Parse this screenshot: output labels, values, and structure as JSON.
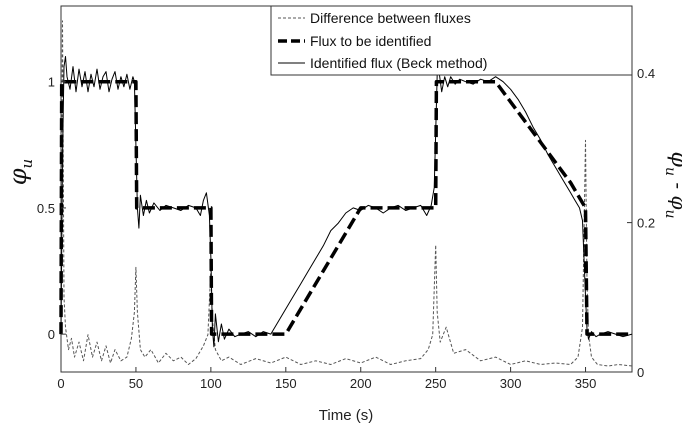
{
  "chart_data": {
    "type": "line",
    "xlabel": "Time (s)",
    "ylabel_left": "φ_u",
    "ylabel_right": "φ̂_u - φ_u",
    "x_ticks": [
      0,
      50,
      100,
      150,
      200,
      250,
      300,
      350
    ],
    "y_left_ticks": [
      0,
      0.5,
      1
    ],
    "y_right_ticks": [
      0,
      0.2,
      0.4
    ],
    "xlim": [
      0,
      381
    ],
    "ylim_left": [
      -0.15,
      1.3
    ],
    "ylim_right": [
      0,
      0.49
    ],
    "grid": false,
    "legend_position": "top-right",
    "series": [
      {
        "name": "Difference between fluxes",
        "axis": "right",
        "style": "dotted",
        "color": "#555555",
        "x": [
          0,
          1,
          2,
          3,
          5,
          7,
          9,
          12,
          15,
          18,
          21,
          24,
          27,
          30,
          33,
          36,
          40,
          44,
          47,
          49,
          50,
          51,
          53,
          56,
          60,
          65,
          70,
          75,
          80,
          85,
          90,
          95,
          98,
          100,
          101,
          103,
          107,
          112,
          120,
          130,
          140,
          150,
          160,
          170,
          180,
          190,
          200,
          210,
          220,
          230,
          240,
          245,
          248,
          250,
          251,
          253,
          257,
          262,
          270,
          280,
          290,
          300,
          310,
          320,
          330,
          340,
          345,
          348,
          350,
          351,
          352,
          354,
          358,
          365,
          372,
          381
        ],
        "y": [
          0.12,
          0.47,
          0.1,
          0.06,
          0.03,
          0.045,
          0.02,
          0.04,
          0.015,
          0.05,
          0.02,
          0.04,
          0.015,
          0.035,
          0.012,
          0.03,
          0.015,
          0.02,
          0.045,
          0.08,
          0.14,
          0.08,
          0.03,
          0.02,
          0.03,
          0.012,
          0.025,
          0.015,
          0.02,
          0.01,
          0.018,
          0.035,
          0.05,
          0.14,
          0.07,
          0.03,
          0.015,
          0.02,
          0.01,
          0.018,
          0.012,
          0.02,
          0.01,
          0.015,
          0.01,
          0.018,
          0.012,
          0.02,
          0.01,
          0.015,
          0.018,
          0.03,
          0.05,
          0.17,
          0.08,
          0.04,
          0.06,
          0.025,
          0.03,
          0.015,
          0.02,
          0.01,
          0.015,
          0.01,
          0.012,
          0.01,
          0.02,
          0.06,
          0.31,
          0.12,
          0.05,
          0.02,
          0.01,
          0.008,
          0.01,
          0.008
        ]
      },
      {
        "name": "Flux to be identified",
        "axis": "left",
        "style": "dashed-thick",
        "color": "#000000",
        "x": [
          0,
          0.5,
          50,
          50.5,
          100,
          100.5,
          150,
          200,
          250,
          250.5,
          290,
          340,
          350,
          351,
          381
        ],
        "y": [
          0,
          1,
          1,
          0.5,
          0.5,
          0,
          0,
          0.5,
          0.5,
          1,
          1,
          0.6,
          0.5,
          0,
          0
        ]
      },
      {
        "name": "Identified flux (Beck method)",
        "axis": "left",
        "style": "solid",
        "color": "#000000",
        "x": [
          0,
          1,
          2,
          3,
          4,
          6,
          8,
          10,
          12,
          14,
          16,
          18,
          20,
          22,
          24,
          26,
          28,
          30,
          32,
          34,
          36,
          38,
          40,
          42,
          44,
          46,
          48,
          49,
          50,
          51,
          52,
          53,
          55,
          57,
          59,
          62,
          66,
          70,
          75,
          80,
          85,
          90,
          93,
          95,
          97,
          99,
          100,
          101,
          102,
          103,
          105,
          107,
          109,
          112,
          116,
          120,
          125,
          130,
          135,
          140,
          145,
          150,
          155,
          160,
          165,
          170,
          175,
          180,
          185,
          190,
          195,
          200,
          205,
          210,
          215,
          220,
          225,
          230,
          235,
          240,
          244,
          247,
          249,
          250,
          251,
          252,
          254,
          256,
          258,
          260,
          263,
          266,
          270,
          275,
          280,
          285,
          290,
          295,
          300,
          305,
          310,
          315,
          320,
          325,
          330,
          335,
          340,
          343,
          346,
          348,
          349,
          350,
          351,
          352,
          354,
          357,
          360,
          365,
          370,
          375,
          381
        ],
        "y": [
          0,
          0.7,
          1.06,
          1.1,
          1.02,
          0.97,
          1.06,
          0.96,
          1.05,
          0.98,
          1.04,
          0.96,
          1.03,
          0.98,
          1.05,
          0.97,
          1.02,
          1.04,
          0.96,
          1.01,
          1.04,
          0.97,
          1.02,
          0.98,
          1.03,
          0.97,
          1.02,
          1.0,
          0.75,
          0.5,
          0.42,
          0.55,
          0.47,
          0.53,
          0.48,
          0.52,
          0.49,
          0.51,
          0.5,
          0.49,
          0.51,
          0.5,
          0.47,
          0.53,
          0.56,
          0.47,
          0.3,
          0.02,
          -0.05,
          0.08,
          -0.03,
          0.04,
          -0.02,
          0.02,
          -0.01,
          0.0,
          0.01,
          -0.01,
          0.01,
          0.0,
          0.05,
          0.1,
          0.15,
          0.2,
          0.25,
          0.3,
          0.35,
          0.41,
          0.44,
          0.48,
          0.5,
          0.49,
          0.51,
          0.5,
          0.48,
          0.5,
          0.51,
          0.49,
          0.5,
          0.51,
          0.47,
          0.51,
          0.58,
          0.8,
          1.03,
          1.05,
          0.96,
          1.02,
          0.98,
          1.02,
          0.99,
          1.01,
          1.0,
          0.99,
          1.01,
          1.0,
          1.02,
          1.0,
          0.97,
          0.93,
          0.88,
          0.82,
          0.77,
          0.71,
          0.66,
          0.61,
          0.56,
          0.53,
          0.5,
          0.45,
          0.3,
          0.15,
          0.02,
          -0.02,
          0.01,
          -0.01,
          0.0,
          0.01,
          0.0,
          -0.01,
          0.0
        ]
      }
    ]
  }
}
